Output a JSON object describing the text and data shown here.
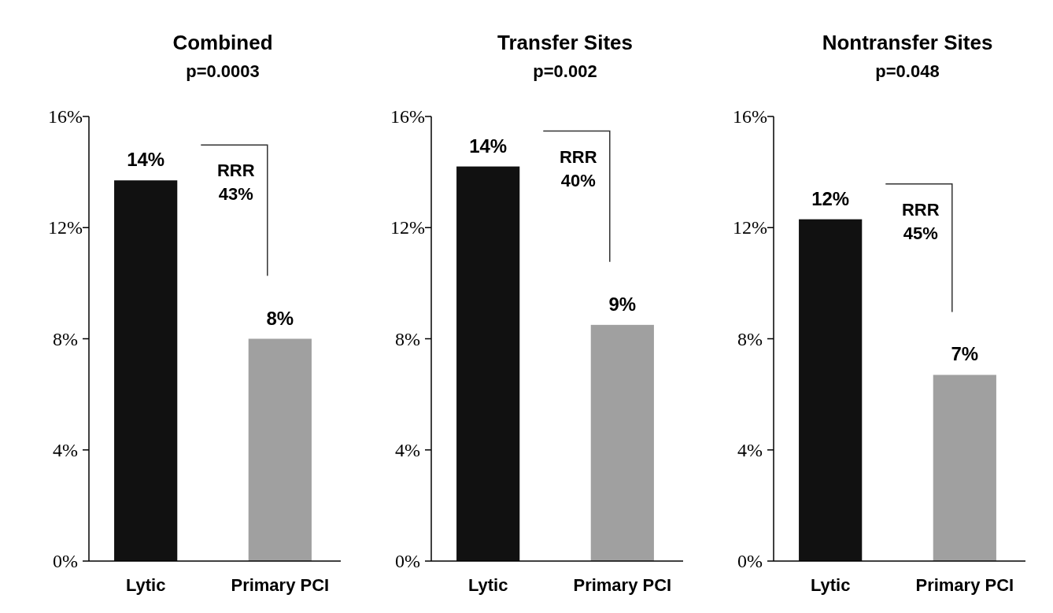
{
  "chart_data": [
    {
      "type": "bar",
      "title": "Combined",
      "subtitle": "p=0.0003",
      "categories": [
        "Lytic",
        "Primary PCI"
      ],
      "values": [
        13.7,
        8.0
      ],
      "colors": [
        "#111111",
        "#a0a0a0"
      ],
      "value_labels": [
        "14%",
        "8%"
      ],
      "ylim": [
        0,
        16
      ],
      "yticks": [
        {
          "value": 0,
          "label": "0%"
        },
        {
          "value": 4,
          "label": "4%"
        },
        {
          "value": 8,
          "label": "8%"
        },
        {
          "value": 12,
          "label": "12%"
        },
        {
          "value": 16,
          "label": "16%"
        }
      ],
      "annotations": [
        "RRR\n43%"
      ]
    },
    {
      "type": "bar",
      "title": "Transfer Sites",
      "subtitle": "p=0.002",
      "categories": [
        "Lytic",
        "Primary PCI"
      ],
      "values": [
        14.2,
        8.5
      ],
      "colors": [
        "#111111",
        "#a0a0a0"
      ],
      "value_labels": [
        "14%",
        "9%"
      ],
      "ylim": [
        0,
        16
      ],
      "yticks": [
        {
          "value": 0,
          "label": "0%"
        },
        {
          "value": 4,
          "label": "4%"
        },
        {
          "value": 8,
          "label": "8%"
        },
        {
          "value": 12,
          "label": "12%"
        },
        {
          "value": 16,
          "label": "16%"
        }
      ],
      "annotations": [
        "RRR\n40%"
      ]
    },
    {
      "type": "bar",
      "title": "Nontransfer Sites",
      "subtitle": "p=0.048",
      "categories": [
        "Lytic",
        "Primary PCI"
      ],
      "values": [
        12.3,
        6.7
      ],
      "colors": [
        "#111111",
        "#a0a0a0"
      ],
      "value_labels": [
        "12%",
        "7%"
      ],
      "ylim": [
        0,
        16
      ],
      "yticks": [
        {
          "value": 0,
          "label": "0%"
        },
        {
          "value": 4,
          "label": "4%"
        },
        {
          "value": 8,
          "label": "8%"
        },
        {
          "value": 12,
          "label": "12%"
        },
        {
          "value": 16,
          "label": "16%"
        }
      ],
      "annotations": [
        "RRR\n45%"
      ]
    }
  ]
}
